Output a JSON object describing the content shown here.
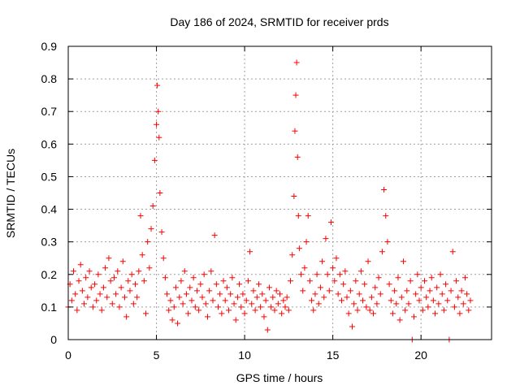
{
  "chart_data": {
    "type": "scatter",
    "title": "Day 186 of 2024, SRMTID for receiver prds",
    "xlabel": "GPS time / hours",
    "ylabel": "SRMTID / TECUs",
    "xlim": [
      0,
      24
    ],
    "ylim": [
      0,
      0.9
    ],
    "xticks": [
      0,
      5,
      10,
      15,
      20
    ],
    "xtick_labels": [
      "0",
      "5",
      "10",
      "15",
      "20"
    ],
    "yticks": [
      0,
      0.1,
      0.2,
      0.3,
      0.4,
      0.5,
      0.6,
      0.7,
      0.8,
      0.9
    ],
    "ytick_labels": [
      "0",
      "0.1",
      "0.2",
      "0.3",
      "0.4",
      "0.5",
      "0.6",
      "0.7",
      "0.8",
      "0.9"
    ],
    "grid": true,
    "marker": "plus",
    "color": "#ff0000",
    "series": [
      {
        "name": "SRMTID",
        "points": [
          [
            0.0,
            0.1
          ],
          [
            0.1,
            0.17
          ],
          [
            0.2,
            0.12
          ],
          [
            0.3,
            0.21
          ],
          [
            0.4,
            0.14
          ],
          [
            0.5,
            0.09
          ],
          [
            0.6,
            0.18
          ],
          [
            0.7,
            0.23
          ],
          [
            0.8,
            0.15
          ],
          [
            0.9,
            0.11
          ],
          [
            1.0,
            0.19
          ],
          [
            1.1,
            0.13
          ],
          [
            1.2,
            0.21
          ],
          [
            1.3,
            0.16
          ],
          [
            1.4,
            0.1
          ],
          [
            1.5,
            0.17
          ],
          [
            1.6,
            0.12
          ],
          [
            1.7,
            0.2
          ],
          [
            1.8,
            0.14
          ],
          [
            1.9,
            0.09
          ],
          [
            2.0,
            0.16
          ],
          [
            2.1,
            0.22
          ],
          [
            2.2,
            0.13
          ],
          [
            2.3,
            0.25
          ],
          [
            2.4,
            0.18
          ],
          [
            2.5,
            0.11
          ],
          [
            2.6,
            0.19
          ],
          [
            2.7,
            0.14
          ],
          [
            2.8,
            0.21
          ],
          [
            2.9,
            0.1
          ],
          [
            3.0,
            0.16
          ],
          [
            3.1,
            0.24
          ],
          [
            3.2,
            0.13
          ],
          [
            3.3,
            0.07
          ],
          [
            3.4,
            0.18
          ],
          [
            3.5,
            0.15
          ],
          [
            3.6,
            0.2
          ],
          [
            3.7,
            0.11
          ],
          [
            3.8,
            0.17
          ],
          [
            3.9,
            0.13
          ],
          [
            4.0,
            0.21
          ],
          [
            4.1,
            0.38
          ],
          [
            4.2,
            0.26
          ],
          [
            4.3,
            0.18
          ],
          [
            4.4,
            0.08
          ],
          [
            4.5,
            0.3
          ],
          [
            4.6,
            0.22
          ],
          [
            4.7,
            0.34
          ],
          [
            4.8,
            0.41
          ],
          [
            4.9,
            0.55
          ],
          [
            5.0,
            0.66
          ],
          [
            5.05,
            0.78
          ],
          [
            5.1,
            0.7
          ],
          [
            5.15,
            0.62
          ],
          [
            5.2,
            0.45
          ],
          [
            5.3,
            0.33
          ],
          [
            5.4,
            0.25
          ],
          [
            5.5,
            0.19
          ],
          [
            5.6,
            0.14
          ],
          [
            5.7,
            0.09
          ],
          [
            5.8,
            0.12
          ],
          [
            5.9,
            0.06
          ],
          [
            6.0,
            0.1
          ],
          [
            6.1,
            0.16
          ],
          [
            6.2,
            0.05
          ],
          [
            6.3,
            0.13
          ],
          [
            6.4,
            0.18
          ],
          [
            6.5,
            0.11
          ],
          [
            6.6,
            0.21
          ],
          [
            6.7,
            0.14
          ],
          [
            6.8,
            0.08
          ],
          [
            6.9,
            0.16
          ],
          [
            7.0,
            0.12
          ],
          [
            7.1,
            0.19
          ],
          [
            7.2,
            0.1
          ],
          [
            7.3,
            0.15
          ],
          [
            7.4,
            0.09
          ],
          [
            7.5,
            0.17
          ],
          [
            7.6,
            0.13
          ],
          [
            7.7,
            0.2
          ],
          [
            7.8,
            0.11
          ],
          [
            7.9,
            0.07
          ],
          [
            8.0,
            0.15
          ],
          [
            8.1,
            0.21
          ],
          [
            8.2,
            0.12
          ],
          [
            8.3,
            0.32
          ],
          [
            8.4,
            0.17
          ],
          [
            8.5,
            0.1
          ],
          [
            8.6,
            0.14
          ],
          [
            8.7,
            0.08
          ],
          [
            8.8,
            0.18
          ],
          [
            8.9,
            0.12
          ],
          [
            9.0,
            0.16
          ],
          [
            9.1,
            0.09
          ],
          [
            9.2,
            0.14
          ],
          [
            9.3,
            0.19
          ],
          [
            9.4,
            0.11
          ],
          [
            9.5,
            0.06
          ],
          [
            9.6,
            0.13
          ],
          [
            9.7,
            0.17
          ],
          [
            9.8,
            0.1
          ],
          [
            9.9,
            0.14
          ],
          [
            10.0,
            0.08
          ],
          [
            10.1,
            0.12
          ],
          [
            10.2,
            0.18
          ],
          [
            10.3,
            0.27
          ],
          [
            10.4,
            0.11
          ],
          [
            10.5,
            0.15
          ],
          [
            10.6,
            0.09
          ],
          [
            10.7,
            0.13
          ],
          [
            10.8,
            0.17
          ],
          [
            10.9,
            0.1
          ],
          [
            11.0,
            0.14
          ],
          [
            11.1,
            0.07
          ],
          [
            11.2,
            0.12
          ],
          [
            11.3,
            0.03
          ],
          [
            11.4,
            0.16
          ],
          [
            11.5,
            0.1
          ],
          [
            11.6,
            0.13
          ],
          [
            11.7,
            0.09
          ],
          [
            11.8,
            0.15
          ],
          [
            11.9,
            0.11
          ],
          [
            12.0,
            0.14
          ],
          [
            12.1,
            0.08
          ],
          [
            12.2,
            0.12
          ],
          [
            12.3,
            0.1
          ],
          [
            12.4,
            0.13
          ],
          [
            12.5,
            0.09
          ],
          [
            12.6,
            0.18
          ],
          [
            12.7,
            0.26
          ],
          [
            12.8,
            0.44
          ],
          [
            12.85,
            0.64
          ],
          [
            12.9,
            0.75
          ],
          [
            12.95,
            0.85
          ],
          [
            13.0,
            0.56
          ],
          [
            13.05,
            0.38
          ],
          [
            13.1,
            0.28
          ],
          [
            13.2,
            0.2
          ],
          [
            13.3,
            0.15
          ],
          [
            13.4,
            0.22
          ],
          [
            13.5,
            0.3
          ],
          [
            13.6,
            0.38
          ],
          [
            13.7,
            0.18
          ],
          [
            13.8,
            0.12
          ],
          [
            13.9,
            0.09
          ],
          [
            14.0,
            0.14
          ],
          [
            14.1,
            0.2
          ],
          [
            14.2,
            0.11
          ],
          [
            14.3,
            0.16
          ],
          [
            14.4,
            0.24
          ],
          [
            14.5,
            0.13
          ],
          [
            14.6,
            0.31
          ],
          [
            14.7,
            0.2
          ],
          [
            14.8,
            0.15
          ],
          [
            14.9,
            0.36
          ],
          [
            15.0,
            0.22
          ],
          [
            15.1,
            0.18
          ],
          [
            15.2,
            0.25
          ],
          [
            15.3,
            0.14
          ],
          [
            15.4,
            0.2
          ],
          [
            15.5,
            0.12
          ],
          [
            15.6,
            0.17
          ],
          [
            15.7,
            0.21
          ],
          [
            15.8,
            0.13
          ],
          [
            15.9,
            0.08
          ],
          [
            16.0,
            0.15
          ],
          [
            16.1,
            0.04
          ],
          [
            16.2,
            0.11
          ],
          [
            16.3,
            0.18
          ],
          [
            16.4,
            0.09
          ],
          [
            16.5,
            0.14
          ],
          [
            16.6,
            0.21
          ],
          [
            16.7,
            0.12
          ],
          [
            16.8,
            0.17
          ],
          [
            16.9,
            0.1
          ],
          [
            17.0,
            0.24
          ],
          [
            17.1,
            0.09
          ],
          [
            17.2,
            0.13
          ],
          [
            17.3,
            0.08
          ],
          [
            17.4,
            0.16
          ],
          [
            17.5,
            0.11
          ],
          [
            17.6,
            0.19
          ],
          [
            17.7,
            0.14
          ],
          [
            17.8,
            0.27
          ],
          [
            17.9,
            0.46
          ],
          [
            18.0,
            0.38
          ],
          [
            18.1,
            0.3
          ],
          [
            18.2,
            0.17
          ],
          [
            18.3,
            0.12
          ],
          [
            18.4,
            0.08
          ],
          [
            18.5,
            0.15
          ],
          [
            18.6,
            0.11
          ],
          [
            18.7,
            0.19
          ],
          [
            18.8,
            0.06
          ],
          [
            18.9,
            0.13
          ],
          [
            19.0,
            0.24
          ],
          [
            19.1,
            0.09
          ],
          [
            19.2,
            0.15
          ],
          [
            19.3,
            0.11
          ],
          [
            19.4,
            0.18
          ],
          [
            19.5,
            0.0
          ],
          [
            19.6,
            0.07
          ],
          [
            19.7,
            0.14
          ],
          [
            19.8,
            0.2
          ],
          [
            19.9,
            0.12
          ],
          [
            20.0,
            0.16
          ],
          [
            20.1,
            0.09
          ],
          [
            20.2,
            0.18
          ],
          [
            20.3,
            0.13
          ],
          [
            20.4,
            0.1
          ],
          [
            20.5,
            0.15
          ],
          [
            20.6,
            0.19
          ],
          [
            20.7,
            0.12
          ],
          [
            20.8,
            0.08
          ],
          [
            20.9,
            0.16
          ],
          [
            21.0,
            0.11
          ],
          [
            21.1,
            0.2
          ],
          [
            21.2,
            0.14
          ],
          [
            21.3,
            0.09
          ],
          [
            21.4,
            0.17
          ],
          [
            21.5,
            0.12
          ],
          [
            21.6,
            0.0
          ],
          [
            21.7,
            0.15
          ],
          [
            21.8,
            0.27
          ],
          [
            21.9,
            0.1
          ],
          [
            22.0,
            0.18
          ],
          [
            22.1,
            0.13
          ],
          [
            22.2,
            0.08
          ],
          [
            22.3,
            0.15
          ],
          [
            22.4,
            0.11
          ],
          [
            22.5,
            0.19
          ],
          [
            22.6,
            0.14
          ],
          [
            22.7,
            0.09
          ],
          [
            22.8,
            0.12
          ]
        ]
      }
    ]
  }
}
